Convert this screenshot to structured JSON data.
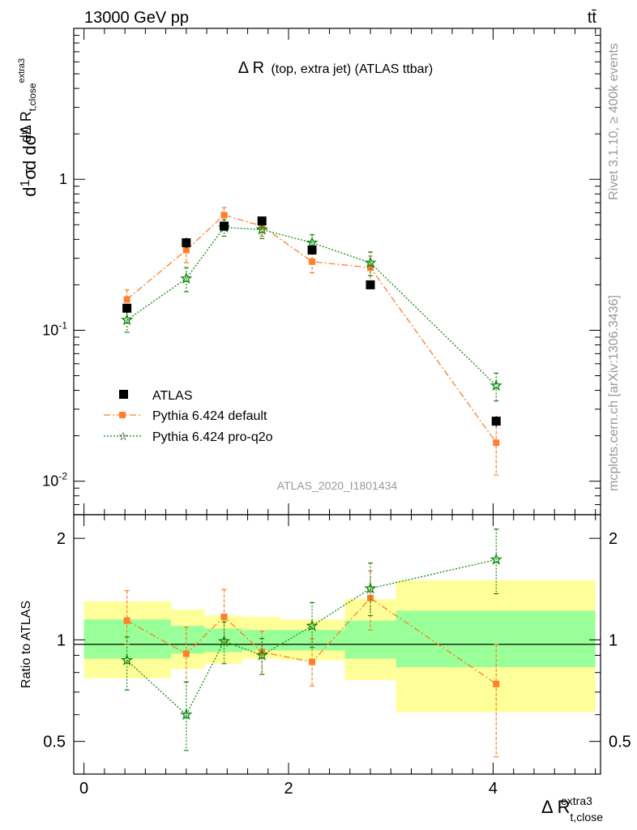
{
  "header": {
    "left_label": "13000 GeV pp",
    "right_label": "tt̄"
  },
  "side_labels": {
    "rivet": "Rivet 3.1.10, ≥ 400k events",
    "mcplots": "mcplots.cern.ch [arXiv:1306.3436]"
  },
  "chart_data": [
    {
      "type": "scatter",
      "panel": "main",
      "title_main": "Δ R",
      "title_sub": "(top, extra jet) (ATLAS ttbar)",
      "analysis_label": "ATLAS_2020_I1801434",
      "ylabel": "dσ^{ttj} / dΔ R_{t,close}^{extra3}",
      "yscale": "log",
      "ylim": [
        0.006,
        10
      ],
      "xlim": [
        -0.1,
        5.05
      ],
      "y_ticks": [
        {
          "value": 1,
          "label": "1"
        },
        {
          "value": 0.1,
          "label": "10^-1"
        },
        {
          "value": 0.01,
          "label": "10^-2"
        }
      ],
      "legend_position": "lower-left",
      "colors": {
        "ATLAS": "#000000",
        "default": "#ff7f2a",
        "proq2o": "#138a13"
      },
      "series": [
        {
          "name": "ATLAS",
          "marker": "square",
          "x": [
            0.42,
            1.0,
            1.37,
            1.74,
            2.23,
            2.8,
            4.03
          ],
          "y": [
            0.14,
            0.38,
            0.49,
            0.53,
            0.34,
            0.2,
            0.025
          ],
          "yerr": [
            0.01,
            0.03,
            0.03,
            0.03,
            0.02,
            0.01,
            0.002
          ]
        },
        {
          "name": "Pythia 6.424 default",
          "marker": "square-small",
          "line": "dash-dot",
          "x": [
            0.42,
            1.0,
            1.37,
            1.74,
            2.23,
            2.8,
            4.03
          ],
          "y": [
            0.16,
            0.34,
            0.58,
            0.49,
            0.285,
            0.26,
            0.018
          ],
          "yerr": [
            0.025,
            0.06,
            0.07,
            0.07,
            0.045,
            0.05,
            0.007
          ]
        },
        {
          "name": "Pythia 6.424 pro-q2o",
          "marker": "star",
          "line": "dotted",
          "x": [
            0.42,
            1.0,
            1.37,
            1.74,
            2.23,
            2.8,
            4.03
          ],
          "y": [
            0.117,
            0.22,
            0.48,
            0.465,
            0.38,
            0.28,
            0.043
          ],
          "yerr": [
            0.02,
            0.04,
            0.06,
            0.06,
            0.05,
            0.05,
            0.009
          ]
        }
      ]
    },
    {
      "type": "scatter",
      "panel": "ratio",
      "ylabel": "Ratio to ATLAS",
      "xlabel": "Δ R_{t,close}^{extra3}",
      "yscale": "log",
      "ylim": [
        0.4,
        2.35
      ],
      "xlim": [
        -0.1,
        5.05
      ],
      "x_ticks": [
        0,
        2,
        4
      ],
      "y_ticks": [
        0.5,
        1,
        2
      ],
      "bands": [
        {
          "x0": 0.0,
          "x1": 0.85,
          "yellow": [
            0.77,
            1.3
          ],
          "green": [
            0.88,
            1.15
          ]
        },
        {
          "x0": 0.85,
          "x1": 1.18,
          "yellow": [
            0.82,
            1.23
          ],
          "green": [
            0.91,
            1.1
          ]
        },
        {
          "x0": 1.18,
          "x1": 1.55,
          "yellow": [
            0.85,
            1.18
          ],
          "green": [
            0.92,
            1.08
          ]
        },
        {
          "x0": 1.55,
          "x1": 1.92,
          "yellow": [
            0.88,
            1.17
          ],
          "green": [
            0.93,
            1.07
          ]
        },
        {
          "x0": 1.92,
          "x1": 2.55,
          "yellow": [
            0.87,
            1.15
          ],
          "green": [
            0.93,
            1.07
          ]
        },
        {
          "x0": 2.55,
          "x1": 3.05,
          "yellow": [
            0.76,
            1.32
          ],
          "green": [
            0.88,
            1.14
          ]
        },
        {
          "x0": 3.05,
          "x1": 5.0,
          "yellow": [
            0.61,
            1.5
          ],
          "green": [
            0.83,
            1.22
          ]
        }
      ],
      "series": [
        {
          "name": "Pythia 6.424 default",
          "x": [
            0.42,
            1.0,
            1.37,
            1.74,
            2.23,
            2.8,
            4.03
          ],
          "y": [
            1.14,
            0.91,
            1.17,
            0.92,
            0.86,
            1.33,
            0.74
          ],
          "ylow": [
            0.97,
            0.75,
            0.99,
            0.79,
            0.73,
            1.07,
            0.45
          ],
          "yhigh": [
            1.4,
            1.09,
            1.41,
            1.06,
            1.01,
            1.6,
            0.97
          ]
        },
        {
          "name": "Pythia 6.424 pro-q2o",
          "x": [
            0.42,
            1.0,
            1.37,
            1.74,
            2.23,
            2.8,
            4.03
          ],
          "y": [
            0.87,
            0.6,
            0.99,
            0.9,
            1.1,
            1.42,
            1.73
          ],
          "ylow": [
            0.71,
            0.47,
            0.85,
            0.79,
            0.95,
            1.18,
            1.37
          ],
          "yhigh": [
            1.02,
            0.75,
            1.13,
            1.01,
            1.29,
            1.69,
            2.13
          ]
        }
      ]
    }
  ]
}
